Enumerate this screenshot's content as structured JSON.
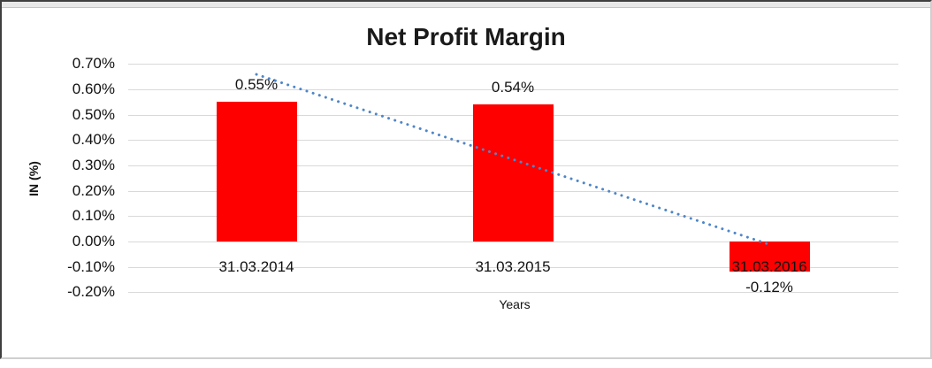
{
  "chart_data": {
    "type": "bar",
    "title": "Net Profit Margin",
    "xlabel": "Years",
    "ylabel": "IN (%)",
    "categories": [
      "31.03.2014",
      "31.03.2015",
      "31.03.2016"
    ],
    "values": [
      0.55,
      0.54,
      -0.12
    ],
    "value_labels": [
      "0.55%",
      "0.54%",
      "-0.12%"
    ],
    "y_ticks": [
      "0.70%",
      "0.60%",
      "0.50%",
      "0.40%",
      "0.30%",
      "0.20%",
      "0.10%",
      "0.00%",
      "-0.10%",
      "-0.20%"
    ],
    "y_tick_values": [
      0.7,
      0.6,
      0.5,
      0.4,
      0.3,
      0.2,
      0.1,
      0.0,
      -0.1,
      -0.2
    ],
    "ylim": [
      -0.2,
      0.7
    ],
    "grid": true,
    "legend": "none",
    "bar_color": "#FF0000",
    "gridline_color": "#D9D9D9",
    "trendline": {
      "type": "linear",
      "style": "dotted",
      "color": "#4E86C8"
    }
  }
}
